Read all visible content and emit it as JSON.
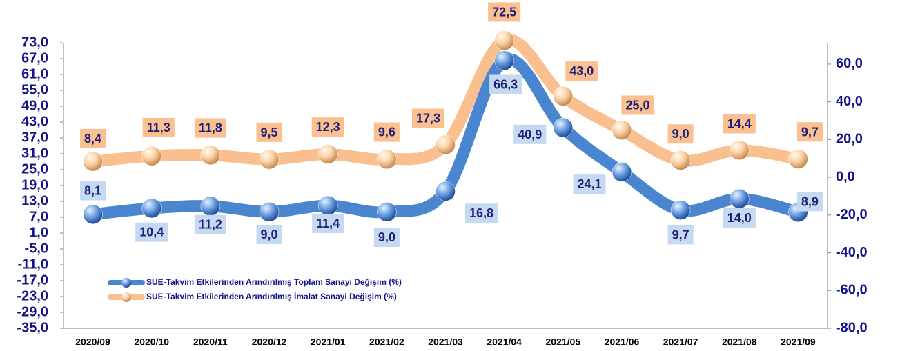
{
  "chart_data": {
    "type": "line",
    "categories": [
      "2020/09",
      "2020/10",
      "2020/11",
      "2020/12",
      "2021/01",
      "2021/02",
      "2021/03",
      "2021/04",
      "2021/05",
      "2021/06",
      "2021/07",
      "2021/08",
      "2021/09"
    ],
    "series": [
      {
        "name": "SUE-Takvim Etkilerinden Arındırılmış Toplam Sanayi Değişim (%)",
        "color": "#4a86d0",
        "label_bg": "#c5d9f1",
        "values": [
          8.1,
          10.4,
          11.2,
          9.0,
          11.4,
          9.0,
          16.8,
          66.3,
          40.9,
          24.1,
          9.7,
          14.0,
          8.9
        ],
        "value_labels": [
          "8,1",
          "10,4",
          "11,2",
          "9,0",
          "11,4",
          "9,0",
          "16,8",
          "66,3",
          "40,9",
          "24,1",
          "9,7",
          "14,0",
          "8,9"
        ]
      },
      {
        "name": "SUE-Takvim Etkilerinden Arındırılmış İmalat Sanayi Değişim (%)",
        "color": "#f9bf8f",
        "label_bg": "#fac090",
        "axis": "y2",
        "values": [
          8.4,
          11.3,
          11.8,
          9.5,
          12.3,
          9.6,
          17.3,
          72.5,
          43.0,
          25.0,
          9.0,
          14.4,
          9.7
        ],
        "value_labels": [
          "8,4",
          "11,3",
          "11,8",
          "9,5",
          "12,3",
          "9,6",
          "17,3",
          "72,5",
          "43,0",
          "25,0",
          "9,0",
          "14,4",
          "9,7"
        ]
      }
    ],
    "ylim": [
      -35,
      73
    ],
    "yticks": [
      {
        "value": 73,
        "label": "73,0"
      },
      {
        "value": 67,
        "label": "67,0"
      },
      {
        "value": 61,
        "label": "61,0"
      },
      {
        "value": 55,
        "label": "55,0"
      },
      {
        "value": 49,
        "label": "49,0"
      },
      {
        "value": 43,
        "label": "43,0"
      },
      {
        "value": 37,
        "label": "37,0"
      },
      {
        "value": 31,
        "label": "31,0"
      },
      {
        "value": 25,
        "label": "25,0"
      },
      {
        "value": 19,
        "label": "19,0"
      },
      {
        "value": 13,
        "label": "13,0"
      },
      {
        "value": 7,
        "label": "7,0"
      },
      {
        "value": 1,
        "label": "1,0"
      },
      {
        "value": -5,
        "label": "-5,0"
      },
      {
        "value": -11,
        "label": "-11,0"
      },
      {
        "value": -17,
        "label": "-17,0"
      },
      {
        "value": -23,
        "label": "-23,0"
      },
      {
        "value": -29,
        "label": "-29,0"
      },
      {
        "value": -35,
        "label": "-35,0"
      }
    ],
    "y2lim": [
      -80,
      71.3
    ],
    "y2ticks": [
      {
        "value": 60,
        "label": "60,0"
      },
      {
        "value": 40,
        "label": "40,0"
      },
      {
        "value": 20,
        "label": "20,0"
      },
      {
        "value": 0,
        "label": "0,0"
      },
      {
        "value": -20,
        "label": "-20,0"
      },
      {
        "value": -40,
        "label": "-40,0"
      },
      {
        "value": -60,
        "label": "-60,0"
      },
      {
        "value": -80,
        "label": "-80,0"
      }
    ],
    "legend": "lower left"
  }
}
